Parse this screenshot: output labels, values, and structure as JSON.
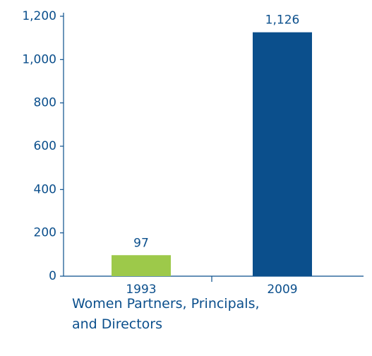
{
  "chart_data": {
    "type": "bar",
    "x_label": "Women Partners, Principals, and Directors",
    "categories": [
      "1993",
      "2009"
    ],
    "values": [
      97,
      1126
    ],
    "value_labels": [
      "97",
      "1,126"
    ],
    "colors": [
      "#9dc94a",
      "#0b4f8c"
    ],
    "ylim": [
      0,
      1200
    ],
    "yticks": [
      0,
      200,
      400,
      600,
      800,
      {
        "value": 1000,
        "label": "1,000"
      },
      {
        "value": 1200,
        "label": "1,200"
      }
    ],
    "grid": false
  }
}
